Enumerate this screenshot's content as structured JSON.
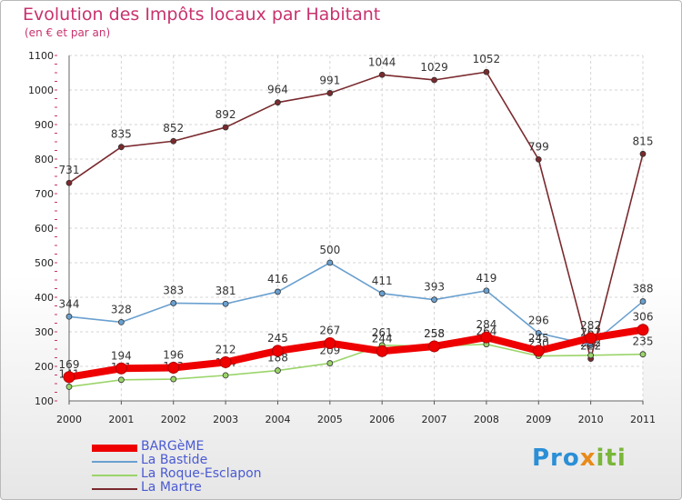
{
  "title": "Evolution des Impôts locaux par Habitant",
  "subtitle": "(en € et par an)",
  "logo": {
    "part1": "Pro",
    "part2": "x",
    "part3": "iti"
  },
  "chart_data": {
    "type": "line",
    "x": [
      "2000",
      "2001",
      "2002",
      "2003",
      "2004",
      "2005",
      "2006",
      "2007",
      "2008",
      "2009",
      "2010",
      "2011"
    ],
    "ylim": [
      100,
      1100
    ],
    "yticks": [
      100,
      200,
      300,
      400,
      500,
      600,
      700,
      800,
      900,
      1000,
      1100
    ],
    "grid": true,
    "series": [
      {
        "name": "La Martre",
        "color": "#7a2a2e",
        "values": [
          731,
          835,
          852,
          892,
          964,
          991,
          1044,
          1029,
          1052,
          799,
          222,
          815
        ],
        "labels": [
          "731",
          "835",
          "852",
          "892",
          "964",
          "991",
          "1044",
          "1029",
          "1052",
          "799",
          "222",
          "815"
        ]
      },
      {
        "name": "La Bastide",
        "color": "#6aa0cf",
        "values": [
          344,
          328,
          383,
          381,
          416,
          500,
          411,
          393,
          419,
          296,
          262,
          388
        ],
        "labels": [
          "344",
          "328",
          "383",
          "381",
          "416",
          "500",
          "411",
          "393",
          "419",
          "296",
          "262",
          "388"
        ]
      },
      {
        "name": "La Roque-Esclapon",
        "color": "#9bd46a",
        "values": [
          141,
          161,
          163,
          174,
          188,
          209,
          261,
          258,
          264,
          230,
          232,
          235
        ],
        "labels": [
          "141",
          "161",
          "163",
          "174",
          "188",
          "209",
          "261",
          "258",
          "264",
          "230",
          "232",
          "235"
        ]
      },
      {
        "name": "BARGèME",
        "color": "#ee0000",
        "values": [
          169,
          194,
          196,
          212,
          245,
          267,
          244,
          258,
          284,
          245,
          282,
          306
        ],
        "labels": [
          "169",
          "194",
          "196",
          "212",
          "245",
          "267",
          "244",
          "258",
          "284",
          "245",
          "282",
          "306"
        ]
      }
    ]
  },
  "legend": [
    {
      "name": "BARGèME",
      "color": "#ee0000",
      "thickness": 8
    },
    {
      "name": "La Bastide",
      "color": "#6aa0cf",
      "thickness": 2
    },
    {
      "name": "La Roque-Esclapon",
      "color": "#9bd46a",
      "thickness": 2
    },
    {
      "name": "La Martre",
      "color": "#7a2a2e",
      "thickness": 2
    }
  ]
}
